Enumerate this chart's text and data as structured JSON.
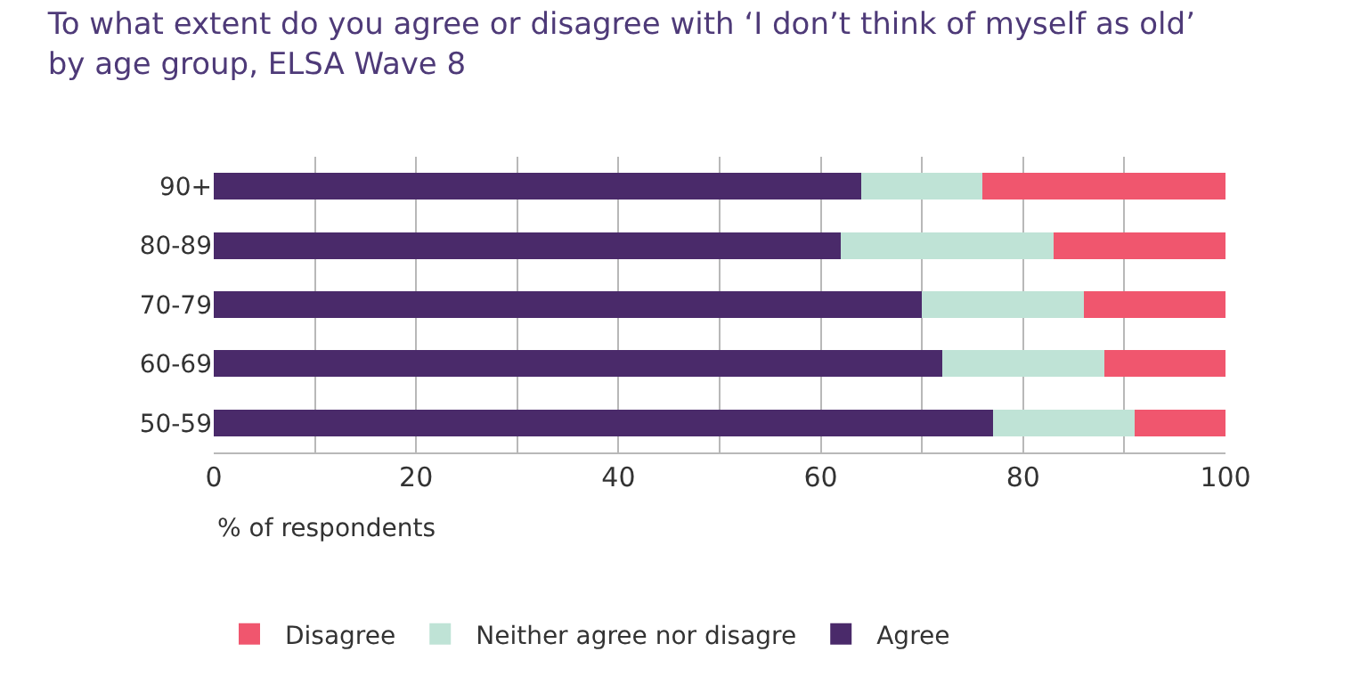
{
  "chart_data": {
    "type": "bar",
    "orientation": "horizontal",
    "stacked": true,
    "title": "To what extent do you agree or disagree with ‘I don’t think of myself as old’ by age group, ELSA Wave 8",
    "xlabel": "% of respondents",
    "categories": [
      "90+",
      "80-89",
      "70-79",
      "60-69",
      "50-59"
    ],
    "series": [
      {
        "name": "Agree",
        "color": "#4a2a6a",
        "values": [
          64,
          62,
          70,
          72,
          77
        ]
      },
      {
        "name": "Neither agree nor disagre",
        "color": "#bfe3d6",
        "values": [
          12,
          21,
          16,
          16,
          14
        ]
      },
      {
        "name": "Disagree",
        "color": "#f0566e",
        "values": [
          24,
          17,
          14,
          12,
          9
        ]
      }
    ],
    "xlim": [
      0,
      100
    ],
    "xticks": [
      0,
      {
        "value": 10,
        "label": null
      },
      20,
      {
        "value": 30,
        "label": null
      },
      40,
      {
        "value": 50,
        "label": null
      },
      60,
      {
        "value": 70,
        "label": null
      },
      80,
      {
        "value": 90,
        "label": null
      },
      100
    ],
    "grid": "x",
    "legend": "bottom"
  }
}
